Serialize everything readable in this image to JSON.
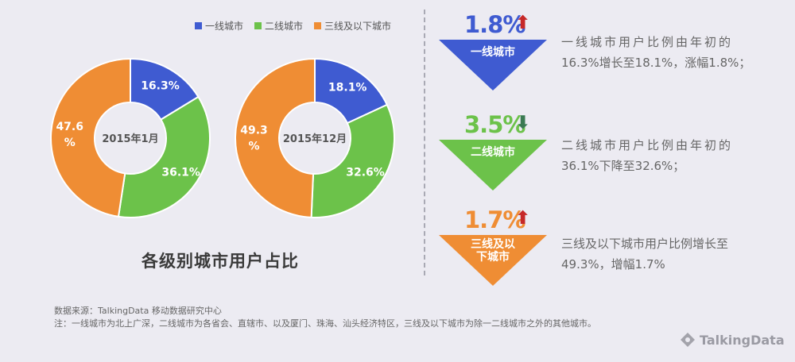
{
  "legend": [
    {
      "label": "一线城市",
      "color": "#3f5bd1"
    },
    {
      "label": "二线城市",
      "color": "#6cc24a"
    },
    {
      "label": "三线及以下城市",
      "color": "#ef8d34"
    }
  ],
  "chart_data": [
    {
      "type": "pie",
      "title": "2015年1月",
      "categories": [
        "一线城市",
        "二线城市",
        "三线及以下城市"
      ],
      "values": [
        16.3,
        36.1,
        47.6
      ],
      "labels": [
        "16.3%",
        "36.1%",
        "47.6\n%"
      ]
    },
    {
      "type": "pie",
      "title": "2015年12月",
      "categories": [
        "一线城市",
        "二线城市",
        "三线及以下城市"
      ],
      "values": [
        18.1,
        32.6,
        49.3
      ],
      "labels": [
        "18.1%",
        "32.6%",
        "49.3\n%"
      ]
    }
  ],
  "chart_title": "各级别城市用户占比",
  "changes": [
    {
      "pct": "1.8%",
      "direction": "up",
      "arrow": "⬆",
      "arrow_color": "#c62828",
      "pct_color": "#3f5bd1",
      "label_lines": [
        "一线城市"
      ],
      "color": "#3f5bd1",
      "desc_line1": "一线城市用户比例由年初的",
      "desc_line2": "16.3%增长至18.1%，涨幅1.8%；"
    },
    {
      "pct": "3.5%",
      "direction": "down",
      "arrow": "⬇",
      "arrow_color": "#3a7a52",
      "pct_color": "#6cc24a",
      "label_lines": [
        "二线城市"
      ],
      "color": "#6cc24a",
      "desc_line1": "二线城市用户比例由年初的",
      "desc_line2": "36.1%下降至32.6%；"
    },
    {
      "pct": "1.7%",
      "direction": "up",
      "arrow": "⬆",
      "arrow_color": "#c62828",
      "pct_color": "#ef8d34",
      "label_lines": [
        "三线及以",
        "下城市"
      ],
      "color": "#ef8d34",
      "desc_line1": "三线及以下城市用户比例增长至",
      "desc_line2": "49.3%，增幅1.7%"
    }
  ],
  "footer": {
    "source": "数据来源：TalkingData 移动数据研究中心",
    "note": "注：一线城市为北上广深，二线城市为各省会、直辖市、以及厦门、珠海、汕头经济特区，三线及以下城市为除一二线城市之外的其他城市。"
  },
  "logo": {
    "text": "TalkingData",
    "icon": "talkingdata-logo-icon"
  }
}
